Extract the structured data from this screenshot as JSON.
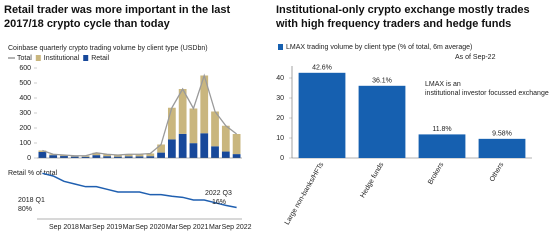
{
  "chart_data": [
    {
      "type": "bar",
      "stacked": true,
      "title": "Retail trader was more important in the last 2017/18 crypto cycle than today",
      "subtitle": "Coinbase quarterly crypto trading volume by client type (USDbn)",
      "ylim": [
        0,
        600
      ],
      "yticks": [
        0,
        100,
        200,
        300,
        400,
        500,
        600
      ],
      "series": [
        {
          "name": "Total",
          "type": "line",
          "color": "#9a9a9a",
          "values": [
            50,
            25,
            20,
            15,
            15,
            35,
            25,
            20,
            25,
            25,
            30,
            90,
            335,
            460,
            330,
            550,
            310,
            215,
            160
          ]
        },
        {
          "name": "Institutional",
          "color": "#c9b67e",
          "values": [
            10,
            6,
            7,
            6,
            7,
            16,
            13,
            11,
            14,
            14,
            18,
            54,
            211,
            299,
            231,
            385,
            232,
            172,
            134
          ]
        },
        {
          "name": "Retail",
          "color": "#17489a",
          "values": [
            40,
            19,
            13,
            9,
            8,
            19,
            12,
            9,
            11,
            11,
            12,
            36,
            124,
            161,
            99,
            165,
            78,
            43,
            26
          ]
        }
      ]
    },
    {
      "type": "line",
      "title": "Retail % of total",
      "color": "#1f5fb0",
      "ylim": [
        0,
        90
      ],
      "categories": [
        null,
        null,
        "Sep 2018",
        null,
        "Mar",
        null,
        "Sep 2019",
        null,
        "Mar",
        null,
        "Sep 2020",
        null,
        "Mar",
        null,
        "Sep 2021",
        null,
        "Mar",
        null,
        "Sep 2022"
      ],
      "values": [
        80,
        75,
        65,
        60,
        55,
        55,
        50,
        45,
        45,
        45,
        40,
        40,
        37,
        35,
        30,
        30,
        25,
        20,
        16
      ],
      "annotations": [
        "2018 Q1",
        "80%",
        "2022 Q3",
        "16%"
      ]
    },
    {
      "type": "bar",
      "title": "Institutional-only crypto exchange mostly trades with high frequency traders and hedge funds",
      "subtitle": "LMAX trading volume by client type (% of total, 6m average)",
      "note": "As of Sep-22",
      "annotation": "LMAX is an institutional investor focussed exchange",
      "color": "#1660b0",
      "ylim": [
        0,
        46
      ],
      "yticks": [
        0,
        10,
        20,
        30,
        40
      ],
      "categories": [
        "Large non-banks/HFTs",
        "Hedge funds",
        "Brokers",
        "Others"
      ],
      "values": [
        42.6,
        36.1,
        11.8,
        9.58
      ],
      "value_labels": [
        "42.6%",
        "36.1%",
        "11.8%",
        "9.58%"
      ]
    }
  ]
}
